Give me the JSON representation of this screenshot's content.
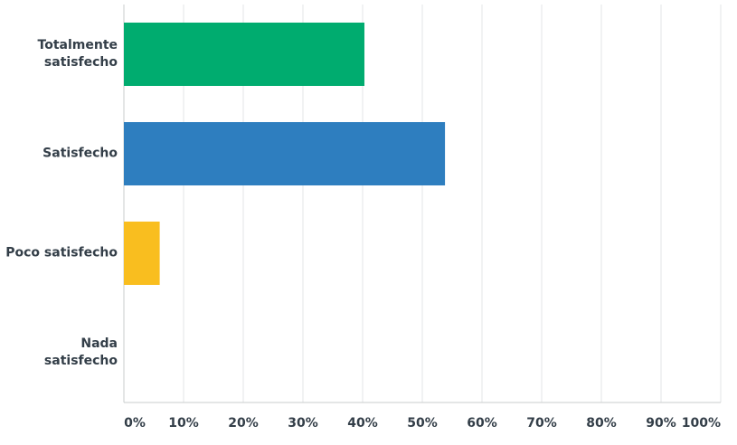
{
  "chart_data": {
    "type": "hbar",
    "categories": [
      "Totalmente satisfecho",
      "Satisfecho",
      "Poco satisfecho",
      "Nada satisfecho"
    ],
    "values": [
      40.3,
      53.8,
      6,
      0
    ],
    "colors": [
      "#00ac6f",
      "#2e7ebf",
      "#f9be1f",
      "#999999"
    ],
    "xlim": [
      0,
      100
    ],
    "xticks": [
      {
        "value": 0,
        "label": "0%"
      },
      {
        "value": 10,
        "label": "10%"
      },
      {
        "value": 20,
        "label": "20%"
      },
      {
        "value": 30,
        "label": "30%"
      },
      {
        "value": 40,
        "label": "40%"
      },
      {
        "value": 50,
        "label": "50%"
      },
      {
        "value": 60,
        "label": "60%"
      },
      {
        "value": 70,
        "label": "70%"
      },
      {
        "value": 80,
        "label": "80%"
      },
      {
        "value": 90,
        "label": "90%"
      },
      {
        "value": 100,
        "label": "100%"
      }
    ],
    "grid": true
  }
}
